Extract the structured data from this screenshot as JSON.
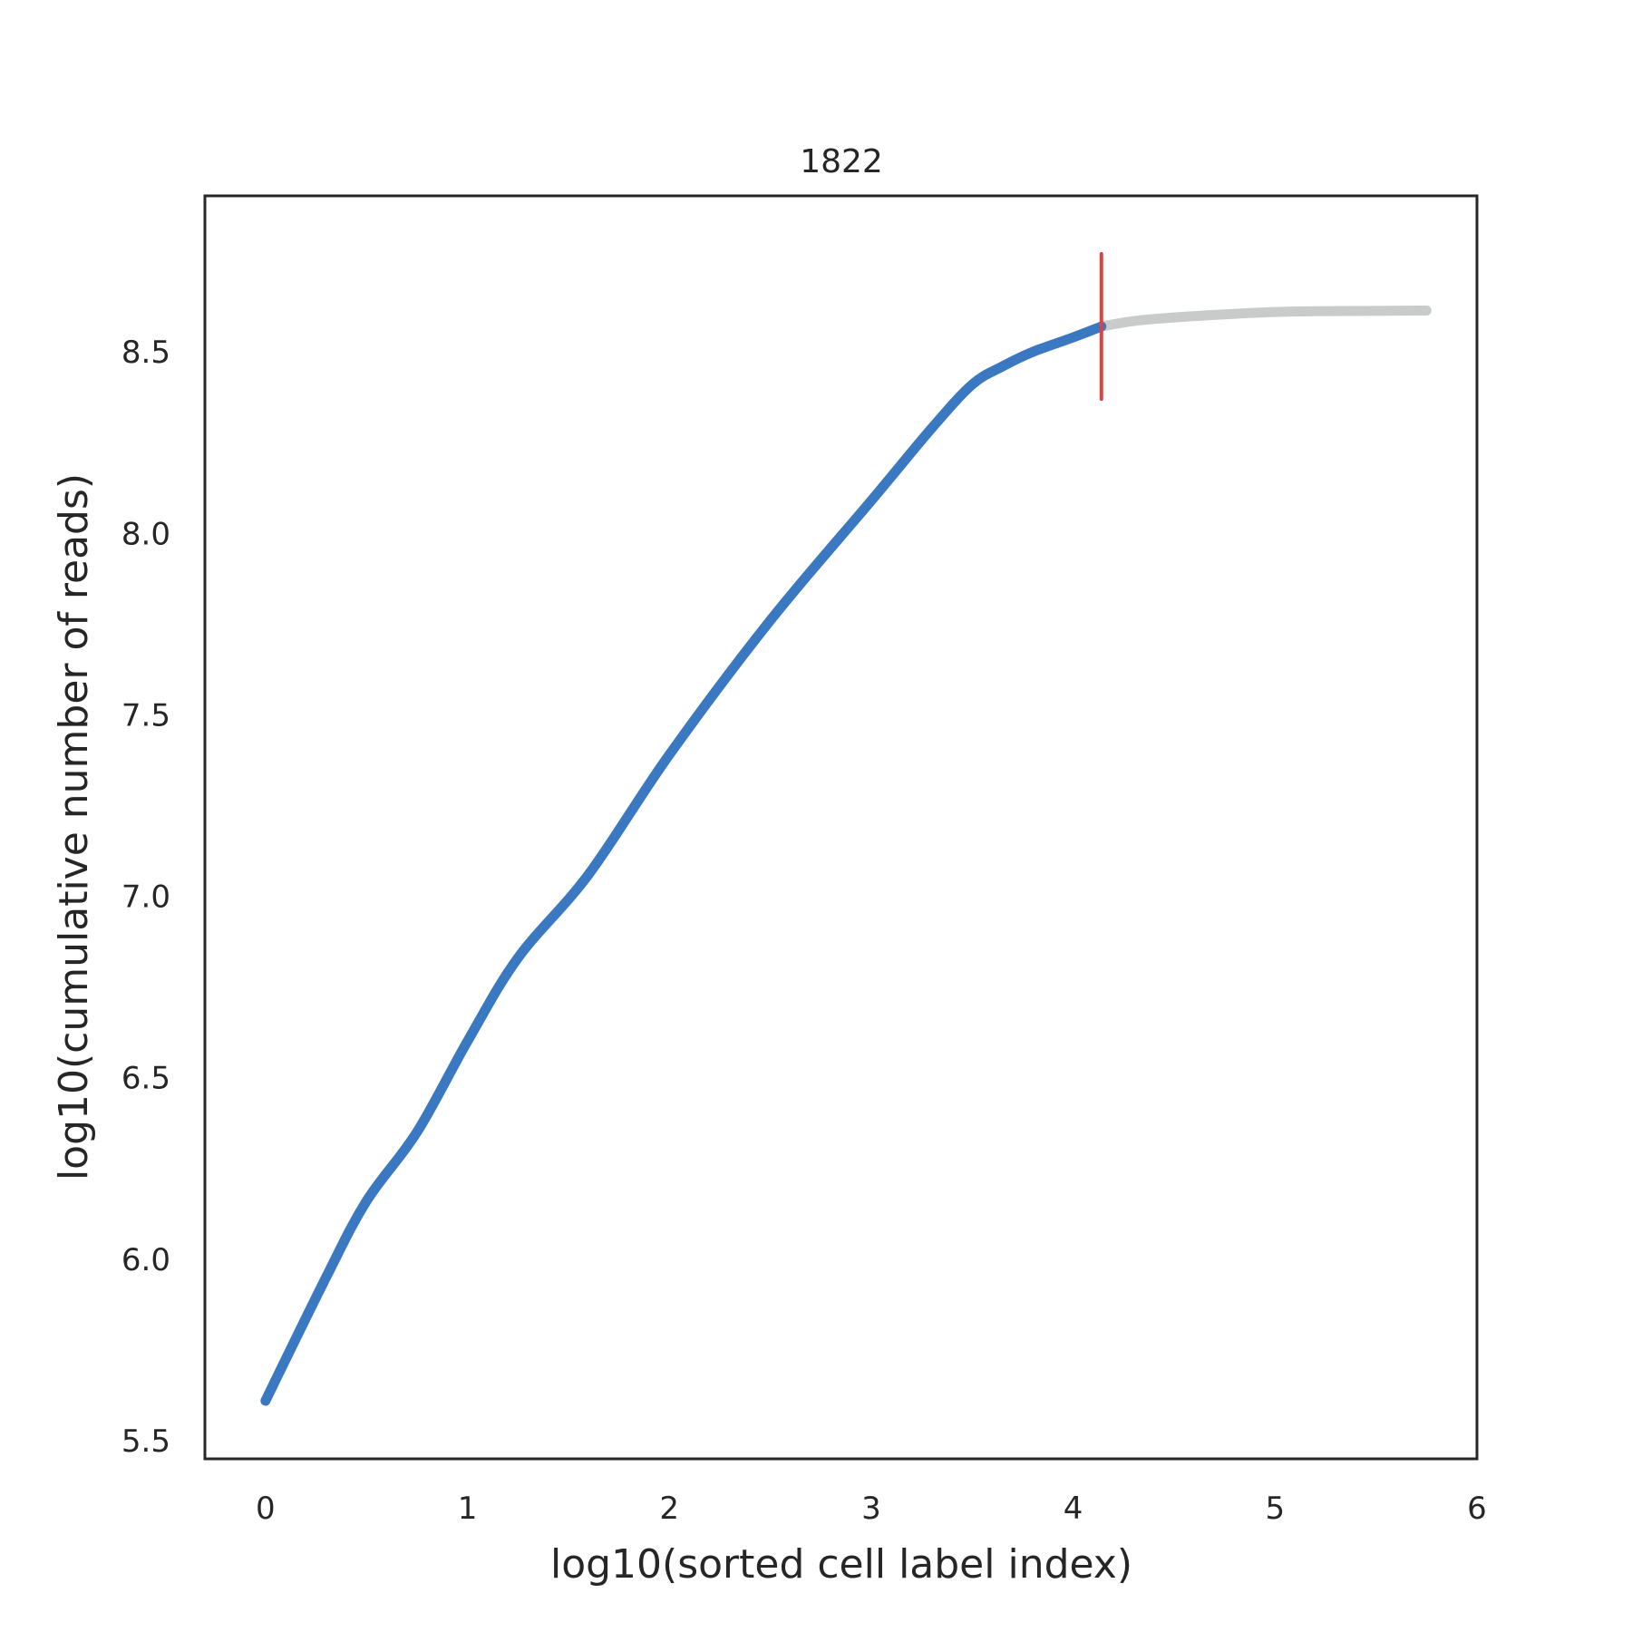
{
  "chart_data": {
    "type": "line",
    "title": "1822",
    "xlabel": "log10(sorted cell label index)",
    "ylabel": "log10(cumulative number of reads)",
    "xlim": [
      -0.3,
      6.0
    ],
    "ylim": [
      5.45,
      8.93
    ],
    "xticks": [
      0,
      1,
      2,
      3,
      4,
      5,
      6
    ],
    "yticks": [
      5.5,
      6.0,
      6.5,
      7.0,
      7.5,
      8.0,
      8.5
    ],
    "xtick_labels": [
      "0",
      "1",
      "2",
      "3",
      "4",
      "5",
      "6"
    ],
    "ytick_labels": [
      "5.5",
      "6.0",
      "6.5",
      "7.0",
      "7.5",
      "8.0",
      "8.5"
    ],
    "grid": false,
    "series": [
      {
        "color": "#3a78c2",
        "x": [
          0,
          0.3,
          0.5,
          0.75,
          1.0,
          1.25,
          1.6,
          2.0,
          2.5,
          3.0,
          3.3,
          3.5,
          3.65,
          3.8,
          4.0,
          4.14
        ],
        "y": [
          5.61,
          5.95,
          6.16,
          6.35,
          6.6,
          6.83,
          7.06,
          7.39,
          7.76,
          8.09,
          8.29,
          8.41,
          8.46,
          8.5,
          8.54,
          8.57
        ]
      },
      {
        "color": "#c8cbc9",
        "x": [
          4.14,
          4.3,
          4.5,
          4.8,
          5.0,
          5.2,
          5.5,
          5.75
        ],
        "y": [
          8.57,
          8.585,
          8.595,
          8.605,
          8.61,
          8.612,
          8.613,
          8.614
        ]
      }
    ],
    "vline": {
      "x": 4.14,
      "ymin": 8.37,
      "ymax": 8.77,
      "color": "#d94545"
    }
  }
}
